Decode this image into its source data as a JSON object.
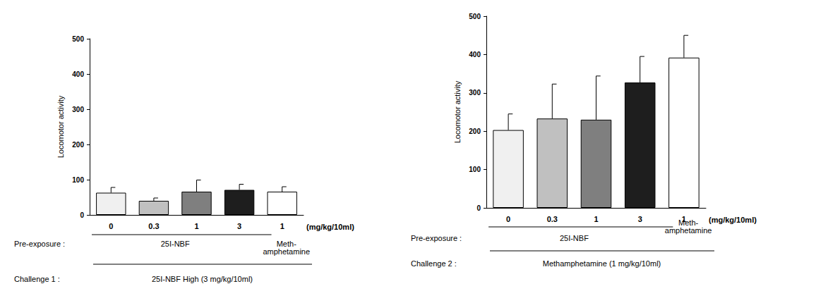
{
  "chart_data": [
    {
      "type": "bar",
      "y_label": "Locomotor activity",
      "x_unit_label": "(mg/kg/10ml)",
      "categories": [
        "0",
        "0.3",
        "1",
        "3",
        "1"
      ],
      "values": [
        63,
        40,
        66,
        71,
        66
      ],
      "errors": [
        15,
        8,
        33,
        16,
        14
      ],
      "colors": [
        "#f0f0f0",
        "#c0c0c0",
        "#7f7f7f",
        "#1e1e1e",
        "#ffffff"
      ],
      "ylim": [
        0,
        500
      ],
      "yticks": [
        0,
        100,
        200,
        300,
        400,
        500
      ],
      "grid": false,
      "pre_exposure_label": "Pre-exposure :",
      "pre_exposure": [
        "25I-NBF",
        "25I-NBF",
        "25I-NBF",
        "25I-NBF",
        "Meth-\namphetamine"
      ],
      "challenge_label": "Challenge 1 :",
      "challenge": "25I-NBF High (3 mg/kg/10ml)"
    },
    {
      "type": "bar",
      "y_label": "Locomotor activity",
      "x_unit_label": "(mg/kg/10ml)",
      "categories": [
        "0",
        "0.3",
        "1",
        "3",
        "1"
      ],
      "values": [
        203,
        233,
        230,
        327,
        392
      ],
      "errors": [
        42,
        90,
        114,
        68,
        58
      ],
      "colors": [
        "#f0f0f0",
        "#c0c0c0",
        "#7f7f7f",
        "#1e1e1e",
        "#ffffff"
      ],
      "ylim": [
        0,
        500
      ],
      "yticks": [
        0,
        100,
        200,
        300,
        400,
        500
      ],
      "grid": false,
      "pre_exposure_label": "Pre-exposure :",
      "pre_exposure": [
        "25I-NBF",
        "25I-NBF",
        "25I-NBF",
        "25I-NBF",
        "Meth-\namphetamine"
      ],
      "challenge_label": "Challenge 2 :",
      "challenge": "Methamphetamine (1 mg/kg/10ml)"
    }
  ]
}
